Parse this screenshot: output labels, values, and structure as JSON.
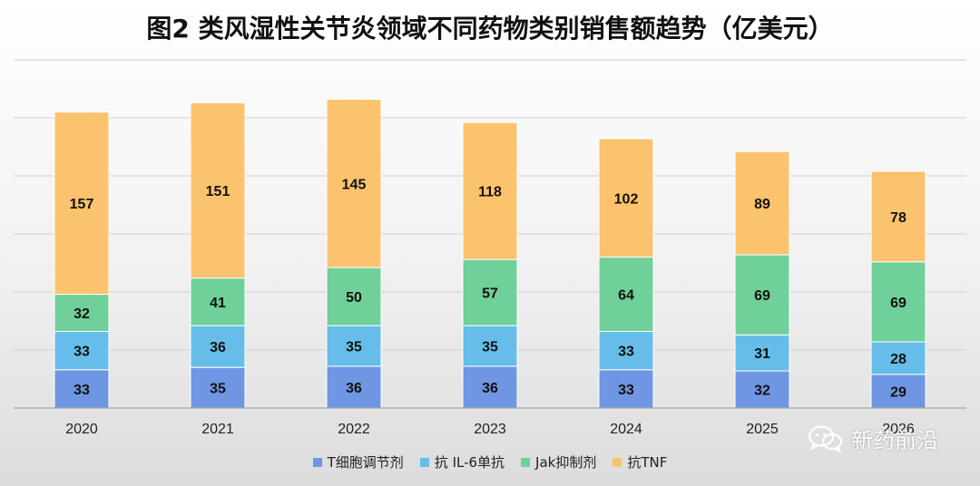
{
  "chart_data": {
    "type": "bar",
    "stacked": true,
    "title": "图2 类风湿性关节炎领域不同药物类别销售额趋势（亿美元）",
    "categories": [
      "2020",
      "2021",
      "2022",
      "2023",
      "2024",
      "2025",
      "2026"
    ],
    "series": [
      {
        "name": "T细胞调节剂",
        "color": "#6f96e2",
        "values": [
          33,
          35,
          36,
          36,
          33,
          32,
          29
        ]
      },
      {
        "name": "抗 IL-6单抗",
        "color": "#66bde9",
        "values": [
          33,
          36,
          35,
          35,
          33,
          31,
          28
        ]
      },
      {
        "name": "Jak抑制剂",
        "color": "#6fd09a",
        "values": [
          32,
          41,
          50,
          57,
          64,
          69,
          69
        ]
      },
      {
        "name": "抗TNF",
        "color": "#fbc36d",
        "values": [
          157,
          151,
          145,
          118,
          102,
          89,
          78
        ]
      }
    ],
    "ylim": [
      0,
      300
    ],
    "grid": true,
    "legend_position": "bottom"
  },
  "watermark": {
    "text": "新药前沿",
    "icon": "wechat-icon"
  }
}
